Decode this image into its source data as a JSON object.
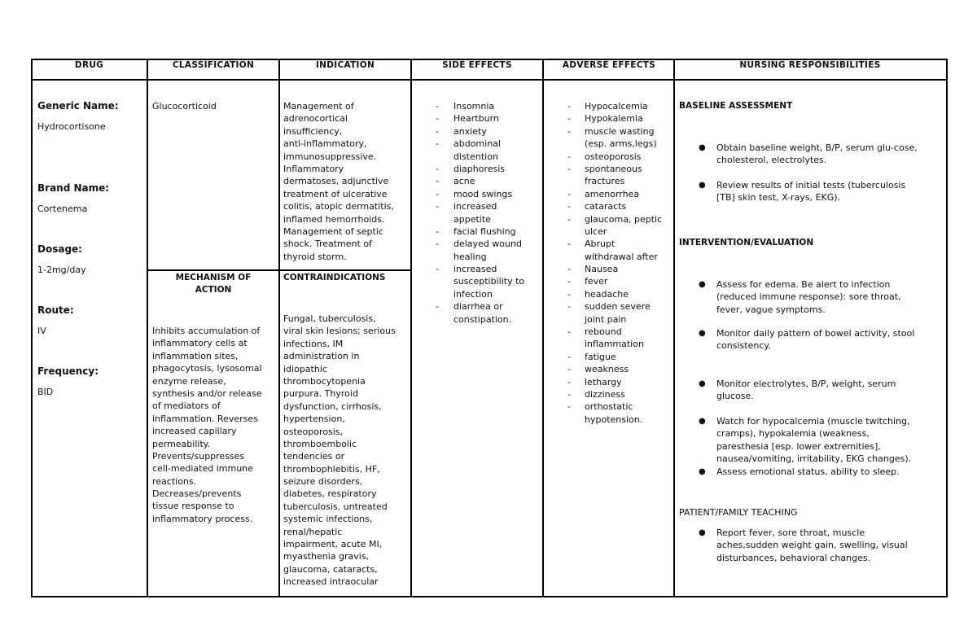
{
  "headers": [
    "DRUG",
    "CLASSIFICATION",
    "INDICATION",
    "SIDE EFFECTS",
    "ADVERSE EFFECTS",
    "NURSING RESPONSIBILITIES"
  ],
  "drug": {
    "generic_label": "Generic Name:",
    "generic_value": "Hydrocortisone",
    "brand_label": "Brand Name:",
    "brand_value": "Cortenema",
    "dosage_label": "Dosage:",
    "dosage_value": "1-2mg/day",
    "route_label": "Route:",
    "route_value": "IV",
    "frequency_label": "Frequency:",
    "frequency_value": "BID"
  },
  "classification": "Glucocorticoid",
  "indication": [
    "Management of",
    "adrenocortical",
    "insufficiency,",
    "anti-inflammatory,",
    "immunosuppressive.",
    "Inflammatory",
    "dermatoses, adjunctive",
    "treatment of ulcerative",
    "colitis, atopic dermatitis,",
    "inflamed hemorrhoids.",
    "Management of septic",
    "shock. Treatment of",
    "thyroid storm."
  ],
  "mechanism": {
    "header": [
      "MECHANISM OF",
      "ACTION"
    ],
    "lines": [
      "Inhibits accumulation of",
      "inflammatory cells at",
      "inflammation sites,",
      "phagocytosis, lysosomal",
      "enzyme release,",
      "synthesis and/or release",
      "of mediators of",
      "inflammation. Reverses",
      "increased capillary",
      "permeability.",
      "Prevents/suppresses",
      "cell-mediated immune",
      "reactions.",
      "Decreases/prevents",
      "tissue response to",
      "inflammatory process."
    ]
  },
  "contraindications": {
    "header": "CONTRAINDICATIONS",
    "lines": [
      "Fungal, tuberculosis,",
      "viral skin lesions; serious",
      "infections, IM",
      "administration in",
      "idiopathic",
      "thrombocytopenia",
      "purpura. Thyroid",
      "dysfunction, cirrhosis,",
      "hypertension,",
      "osteoporosis,",
      "thromboembolic",
      "tendencies or",
      "thrombophlebitis, HF,",
      "seizure disorders,",
      "diabetes, respiratory",
      "tuberculosis, untreated",
      "systemic infections,",
      "renal/hepatic",
      "impairment, acute MI,",
      "myasthenia gravis,",
      "glaucoma, cataracts,",
      "increased intraocular"
    ]
  },
  "side_effects": [
    [
      "Insomnia"
    ],
    [
      "Heartburn"
    ],
    [
      "anxiety"
    ],
    [
      "abdominal",
      "distention"
    ],
    [
      "diaphoresis"
    ],
    [
      "acne"
    ],
    [
      "mood swings"
    ],
    [
      "increased",
      "appetite"
    ],
    [
      "facial flushing"
    ],
    [
      "delayed wound",
      "healing"
    ],
    [
      "increased",
      "susceptibility to",
      "infection"
    ],
    [
      " diarrhea or",
      "constipation."
    ]
  ],
  "adverse_effects": [
    [
      "Hypocalcemia"
    ],
    [
      "Hypokalemia"
    ],
    [
      "muscle wasting",
      "(esp. arms,legs)"
    ],
    [
      "osteoporosis"
    ],
    [
      "spontaneous",
      "fractures"
    ],
    [
      "amenorrhea"
    ],
    [
      "cataracts"
    ],
    [
      "glaucoma, peptic",
      "ulcer"
    ],
    [
      "Abrupt",
      "withdrawal after"
    ],
    [
      "Nausea"
    ],
    [
      "fever"
    ],
    [
      "headache"
    ],
    [
      "sudden severe",
      "joint pain"
    ],
    [
      "rebound",
      "inflammation"
    ],
    [
      "fatigue"
    ],
    [
      "weakness"
    ],
    [
      "lethargy"
    ],
    [
      "dizziness"
    ],
    [
      "orthostatic",
      "hypotension."
    ]
  ],
  "dash": "-",
  "bullet": "●",
  "nursing": {
    "baseline_heading": "BASELINE ASSESSMENT",
    "baseline": [
      [
        "Obtain baseline weight, B/P, serum glu-cose,",
        "cholesterol, electrolytes."
      ],
      [
        "Review results of initial tests (tuberculosis",
        "[TB] skin test, X-rays, EKG)."
      ]
    ],
    "intervention_heading": "INTERVENTION/EVALUATION",
    "intervention": [
      [
        "Assess for edema. Be alert to infection",
        "(reduced immune response): sore throat,",
        "fever, vague symptoms."
      ],
      [
        " Monitor daily pattern of bowel activity, stool",
        "consistency."
      ],
      [
        "Monitor electrolytes, B/P, weight, serum",
        "glucose."
      ],
      [
        "Watch for hypocalcemia (muscle twitching,",
        "cramps), hypokalemia (weakness,",
        "paresthesia [esp. lower extremities],",
        "nausea/vomiting, irritability, EKG changes)."
      ],
      [
        "Assess emotional status, ability to sleep."
      ]
    ],
    "teaching_heading": "PATIENT/FAMILY TEACHING",
    "teaching": [
      [
        "Report fever, sore throat, muscle",
        "aches,sudden weight gain, swelling, visual",
        "disturbances, behavioral changes."
      ]
    ]
  }
}
